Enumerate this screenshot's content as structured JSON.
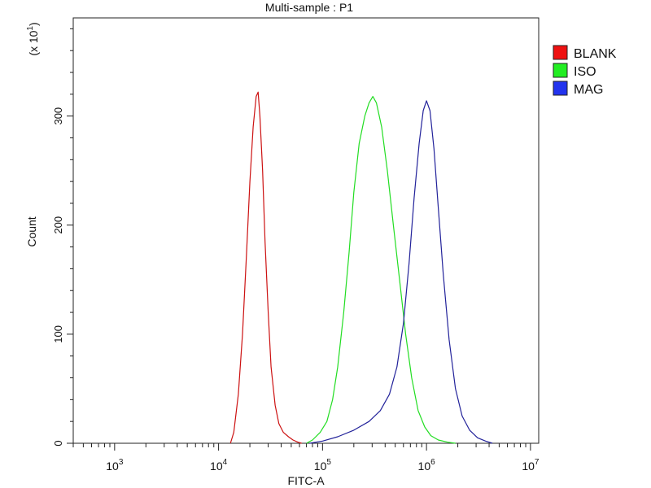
{
  "chart_data": {
    "type": "line",
    "title": "Multi-sample : P1",
    "xlabel": "FITC-A",
    "ylabel": "Count",
    "y_multiplier": "(x 10",
    "y_multiplier_exp": "1",
    "y_multiplier_close": ")",
    "x_scale": "log",
    "xlim": [
      400,
      12000000
    ],
    "ylim": [
      0,
      390
    ],
    "x_ticks": [
      {
        "value": 1000,
        "base": "10",
        "exp": "3"
      },
      {
        "value": 10000,
        "base": "10",
        "exp": "4"
      },
      {
        "value": 100000,
        "base": "10",
        "exp": "5"
      },
      {
        "value": 1000000,
        "base": "10",
        "exp": "6"
      },
      {
        "value": 10000000,
        "base": "10",
        "exp": "7"
      }
    ],
    "y_ticks": [
      {
        "value": 0,
        "label": "0"
      },
      {
        "value": 100,
        "label": "100"
      },
      {
        "value": 200,
        "label": "200"
      },
      {
        "value": 300,
        "label": "300"
      }
    ],
    "grid": false,
    "legend_position": "right",
    "series": [
      {
        "name": "BLANK",
        "color": "#cc1111",
        "legend_color": "#ee1111",
        "points": [
          [
            13000,
            0
          ],
          [
            14000,
            10
          ],
          [
            15500,
            45
          ],
          [
            17000,
            100
          ],
          [
            18500,
            170
          ],
          [
            20000,
            240
          ],
          [
            21500,
            290
          ],
          [
            23000,
            318
          ],
          [
            24000,
            322
          ],
          [
            25000,
            300
          ],
          [
            26500,
            250
          ],
          [
            28000,
            185
          ],
          [
            30000,
            120
          ],
          [
            32000,
            70
          ],
          [
            35000,
            35
          ],
          [
            38000,
            18
          ],
          [
            42000,
            10
          ],
          [
            47000,
            6
          ],
          [
            52000,
            3
          ],
          [
            58000,
            1
          ],
          [
            63000,
            0
          ]
        ]
      },
      {
        "name": "ISO",
        "color": "#22dd22",
        "legend_color": "#22ee22",
        "points": [
          [
            70000,
            0
          ],
          [
            80000,
            3
          ],
          [
            95000,
            10
          ],
          [
            110000,
            20
          ],
          [
            125000,
            40
          ],
          [
            140000,
            70
          ],
          [
            160000,
            120
          ],
          [
            180000,
            175
          ],
          [
            200000,
            230
          ],
          [
            225000,
            275
          ],
          [
            255000,
            300
          ],
          [
            280000,
            312
          ],
          [
            305000,
            318
          ],
          [
            330000,
            312
          ],
          [
            370000,
            290
          ],
          [
            420000,
            250
          ],
          [
            480000,
            200
          ],
          [
            550000,
            150
          ],
          [
            630000,
            100
          ],
          [
            720000,
            60
          ],
          [
            830000,
            30
          ],
          [
            960000,
            15
          ],
          [
            1100000,
            7
          ],
          [
            1300000,
            3
          ],
          [
            1600000,
            1
          ],
          [
            1900000,
            0
          ]
        ]
      },
      {
        "name": "MAG",
        "color": "#22229a",
        "legend_color": "#2233ee",
        "points": [
          [
            75000,
            0
          ],
          [
            100000,
            2
          ],
          [
            140000,
            6
          ],
          [
            200000,
            12
          ],
          [
            280000,
            20
          ],
          [
            360000,
            30
          ],
          [
            440000,
            45
          ],
          [
            520000,
            70
          ],
          [
            600000,
            110
          ],
          [
            680000,
            165
          ],
          [
            760000,
            225
          ],
          [
            850000,
            275
          ],
          [
            930000,
            305
          ],
          [
            1000000,
            314
          ],
          [
            1080000,
            305
          ],
          [
            1180000,
            270
          ],
          [
            1300000,
            215
          ],
          [
            1450000,
            155
          ],
          [
            1650000,
            95
          ],
          [
            1900000,
            50
          ],
          [
            2200000,
            25
          ],
          [
            2600000,
            12
          ],
          [
            3100000,
            5
          ],
          [
            3700000,
            2
          ],
          [
            4300000,
            0
          ]
        ]
      }
    ]
  }
}
